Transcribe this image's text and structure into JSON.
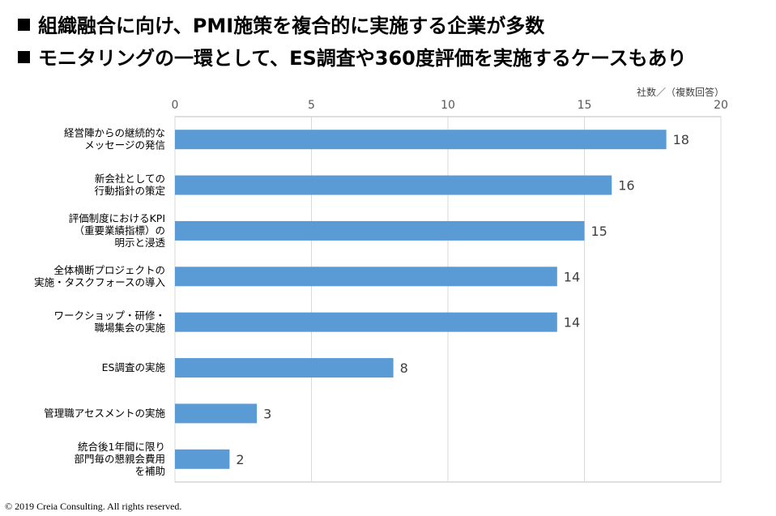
{
  "bullets": [
    "組織融合に向け、PMI施策を複合的に実施する企業が多数",
    "モニタリングの一環として、ES調査や360度評価を実施するケースもあり"
  ],
  "copyright": "© 2019 Creia Consulting. All rights reserved.",
  "chart_data": {
    "type": "bar",
    "orientation": "horizontal",
    "unit_label": "社数／（複数回答）",
    "xlim": [
      0,
      20
    ],
    "x_ticks": [
      "0",
      "5",
      "10",
      "15",
      "20"
    ],
    "x_axis_position": "top",
    "grid": true,
    "bar_color": "#5B9BD5",
    "categories": [
      [
        "経営陣からの継続的な",
        "メッセージの発信"
      ],
      [
        "新会社としての",
        "行動指針の策定"
      ],
      [
        "評価制度におけるKPI",
        "（重要業績指標）の",
        "明示と浸透"
      ],
      [
        "全体横断プロジェクトの",
        "実施・タスクフォースの導入"
      ],
      [
        "ワークショップ・研修・",
        "職場集会の実施"
      ],
      [
        "ES調査の実施"
      ],
      [
        "管理職アセスメントの実施"
      ],
      [
        "統合後1年間に限り",
        "部門毎の懇親会費用",
        "を補助"
      ]
    ],
    "values": [
      18,
      16,
      15,
      14,
      14,
      8,
      3,
      2
    ]
  }
}
